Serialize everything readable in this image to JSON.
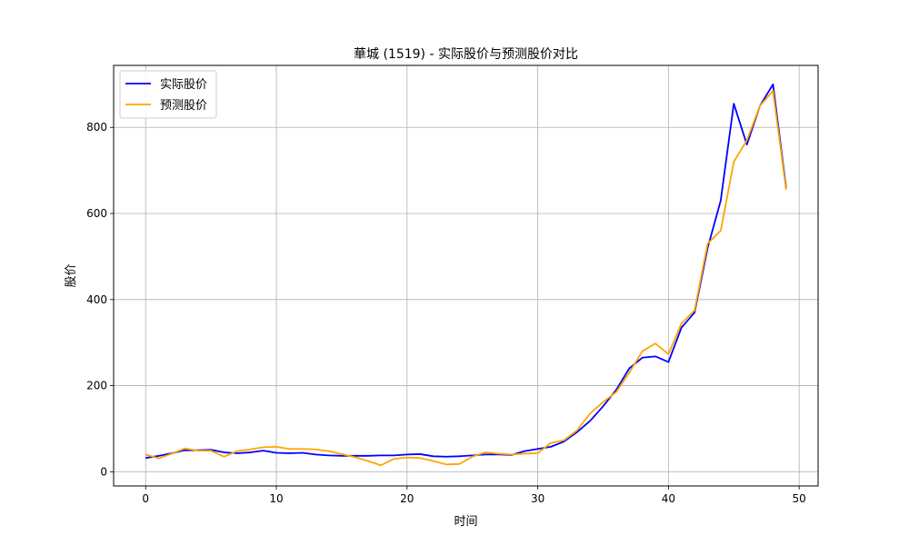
{
  "chart_data": {
    "type": "line",
    "title": "華城 (1519) - 实际股价与预测股价对比",
    "xlabel": "时间",
    "ylabel": "股价",
    "xlim": [
      -2.45,
      51.45
    ],
    "ylim": [
      -33,
      944
    ],
    "xticks": [
      0,
      10,
      20,
      30,
      40,
      50
    ],
    "yticks": [
      0,
      200,
      400,
      600,
      800
    ],
    "grid": true,
    "legend_position": "top-left",
    "x": [
      0,
      1,
      2,
      3,
      4,
      5,
      6,
      7,
      8,
      9,
      10,
      11,
      12,
      13,
      14,
      15,
      16,
      17,
      18,
      19,
      20,
      21,
      22,
      23,
      24,
      25,
      26,
      27,
      28,
      29,
      30,
      31,
      32,
      33,
      34,
      35,
      36,
      37,
      38,
      39,
      40,
      41,
      42,
      43,
      44,
      45,
      46,
      47,
      48,
      49
    ],
    "series": [
      {
        "name": "实际股价",
        "color": "#0000ff",
        "values": [
          32,
          37,
          43,
          50,
          50,
          51,
          45,
          43,
          45,
          49,
          44,
          43,
          44,
          40,
          38,
          37,
          37,
          37,
          38,
          38,
          40,
          41,
          36,
          35,
          36,
          38,
          40,
          40,
          39,
          48,
          53,
          58,
          70,
          92,
          118,
          152,
          190,
          240,
          265,
          268,
          255,
          335,
          370,
          520,
          630,
          855,
          760,
          850,
          900,
          660
        ]
      },
      {
        "name": "预测股价",
        "color": "#ffa500",
        "values": [
          40,
          31,
          42,
          54,
          49,
          49,
          35,
          48,
          52,
          57,
          58,
          53,
          53,
          52,
          48,
          41,
          34,
          25,
          15,
          30,
          33,
          32,
          25,
          17,
          18,
          35,
          45,
          42,
          40,
          42,
          43,
          67,
          73,
          96,
          135,
          162,
          185,
          230,
          280,
          298,
          273,
          345,
          375,
          530,
          560,
          720,
          770,
          850,
          885,
          655
        ]
      }
    ]
  }
}
